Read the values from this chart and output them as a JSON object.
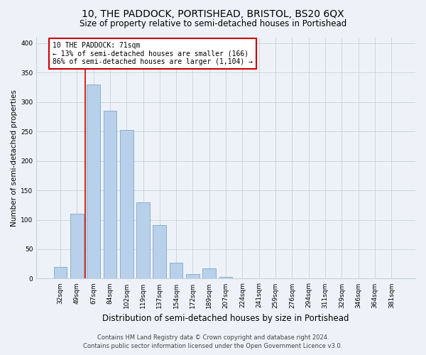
{
  "title": "10, THE PADDOCK, PORTISHEAD, BRISTOL, BS20 6QX",
  "subtitle": "Size of property relative to semi-detached houses in Portishead",
  "xlabel": "Distribution of semi-detached houses by size in Portishead",
  "ylabel": "Number of semi-detached properties",
  "bin_labels": [
    "32sqm",
    "49sqm",
    "67sqm",
    "84sqm",
    "102sqm",
    "119sqm",
    "137sqm",
    "154sqm",
    "172sqm",
    "189sqm",
    "207sqm",
    "224sqm",
    "241sqm",
    "259sqm",
    "276sqm",
    "294sqm",
    "311sqm",
    "329sqm",
    "346sqm",
    "364sqm",
    "381sqm"
  ],
  "bar_values": [
    20,
    110,
    330,
    285,
    252,
    130,
    91,
    27,
    8,
    18,
    3,
    0,
    1,
    0,
    0,
    0,
    0,
    1,
    0,
    1,
    1
  ],
  "bar_color": "#b8d0ea",
  "bar_edge_color": "#6a9ec0",
  "vline_color": "#cc0000",
  "vline_x": 1.5,
  "annotation_text": "10 THE PADDOCK: 71sqm\n← 13% of semi-detached houses are smaller (166)\n86% of semi-detached houses are larger (1,104) →",
  "annotation_box_color": "#ffffff",
  "annotation_box_edge_color": "#cc0000",
  "ylim": [
    0,
    410
  ],
  "yticks": [
    0,
    50,
    100,
    150,
    200,
    250,
    300,
    350,
    400
  ],
  "footer_line1": "Contains HM Land Registry data © Crown copyright and database right 2024.",
  "footer_line2": "Contains public sector information licensed under the Open Government Licence v3.0.",
  "background_color": "#eef2f8",
  "title_fontsize": 10,
  "subtitle_fontsize": 8.5,
  "xlabel_fontsize": 8.5,
  "ylabel_fontsize": 7.5,
  "tick_fontsize": 6.5,
  "annotation_fontsize": 7,
  "footer_fontsize": 6
}
